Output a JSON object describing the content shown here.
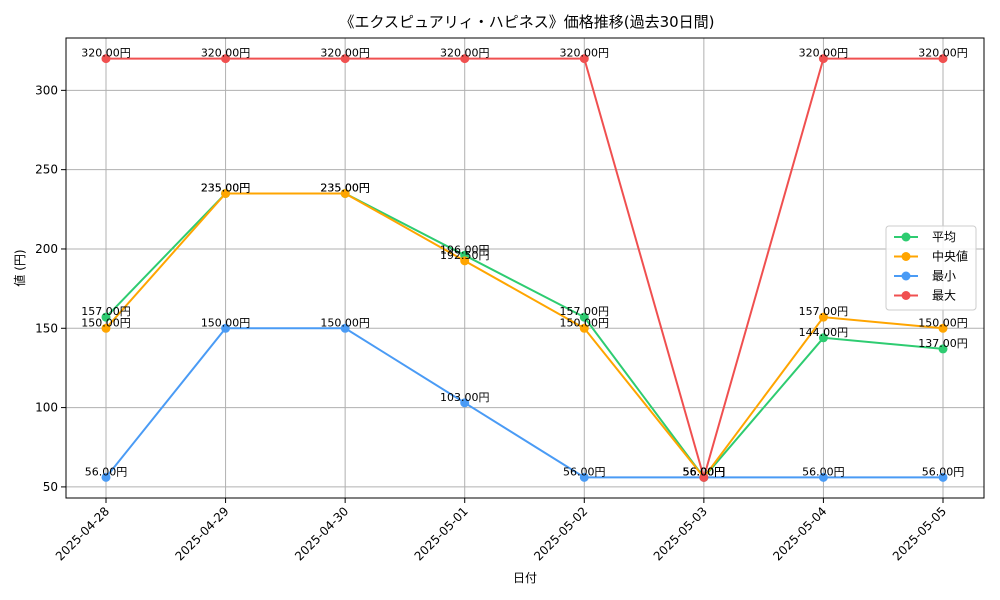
{
  "chart_data": {
    "type": "line",
    "title": "《エクスピュアリィ・ハピネス》価格推移(過去30日間)",
    "xlabel": "日付",
    "ylabel": "値 (円)",
    "categories": [
      "2025-04-28",
      "2025-04-29",
      "2025-04-30",
      "2025-05-01",
      "2025-05-02",
      "2025-05-03",
      "2025-05-04",
      "2025-05-05"
    ],
    "ylim": [
      43,
      333
    ],
    "yticks": [
      50,
      100,
      150,
      200,
      250,
      300
    ],
    "grid": true,
    "legend_position": "right",
    "label_suffix": "円",
    "series": [
      {
        "name": "平均",
        "color": "#2ecc71",
        "values": [
          157,
          235,
          235,
          196,
          157,
          56,
          144,
          137
        ]
      },
      {
        "name": "中央値",
        "color": "#ffa500",
        "values": [
          150,
          235,
          235,
          192.5,
          150,
          56,
          157,
          150
        ]
      },
      {
        "name": "最小",
        "color": "#4a9bf5",
        "values": [
          56,
          150,
          150,
          103,
          56,
          56,
          56,
          56
        ]
      },
      {
        "name": "最大",
        "color": "#f05050",
        "values": [
          320,
          320,
          320,
          320,
          320,
          56,
          320,
          320
        ]
      }
    ]
  }
}
